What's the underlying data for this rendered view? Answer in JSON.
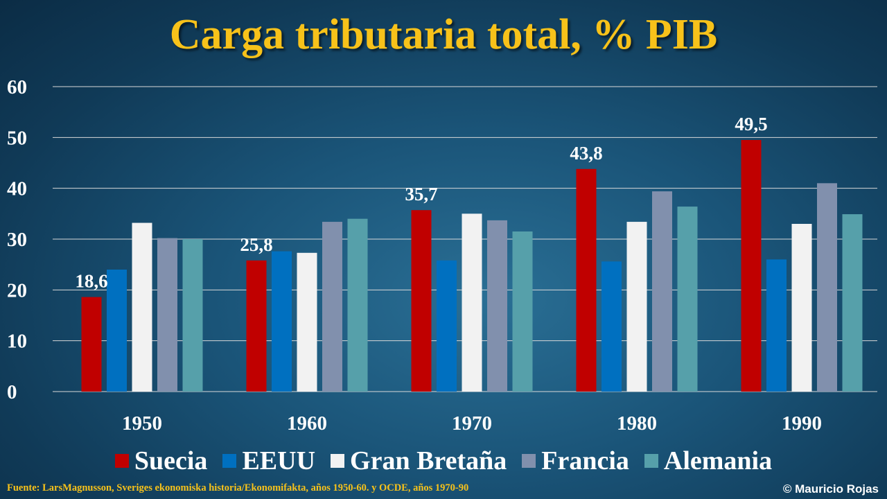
{
  "chart_data": {
    "type": "bar",
    "title": "Carga tributaria total, % PIB",
    "categories": [
      "1950",
      "1960",
      "1970",
      "1980",
      "1990"
    ],
    "series": [
      {
        "name": "Suecia",
        "color": "#c00000",
        "values": [
          18.6,
          25.8,
          35.7,
          43.8,
          49.5
        ],
        "labels": [
          "18,6",
          "25,8",
          "35,7",
          "43,8",
          "49,5"
        ]
      },
      {
        "name": "EEUU",
        "color": "#0070c0",
        "values": [
          24,
          27.6,
          25.8,
          25.6,
          26
        ]
      },
      {
        "name": "Gran Bretaña",
        "color": "#f2f2f2",
        "values": [
          33.2,
          27.3,
          35,
          33.4,
          33
        ]
      },
      {
        "name": "Francia",
        "color": "#8190ad",
        "values": [
          30.2,
          33.4,
          33.7,
          39.4,
          41
        ]
      },
      {
        "name": "Alemania",
        "color": "#56a0aa",
        "values": [
          30,
          34,
          31.5,
          36.4,
          34.9
        ]
      }
    ],
    "yticks": [
      "0",
      "10",
      "20",
      "30",
      "40",
      "50",
      "60"
    ],
    "ylim": [
      0,
      60
    ],
    "grid": true,
    "legend": "bottom"
  },
  "footer": {
    "source": "Fuente: LarsMagnusson, Sveriges ekonomiska historia/Ekonomifakta, años 1950-60. y OCDE, años 1970-90",
    "credit": "© Mauricio Rojas"
  }
}
